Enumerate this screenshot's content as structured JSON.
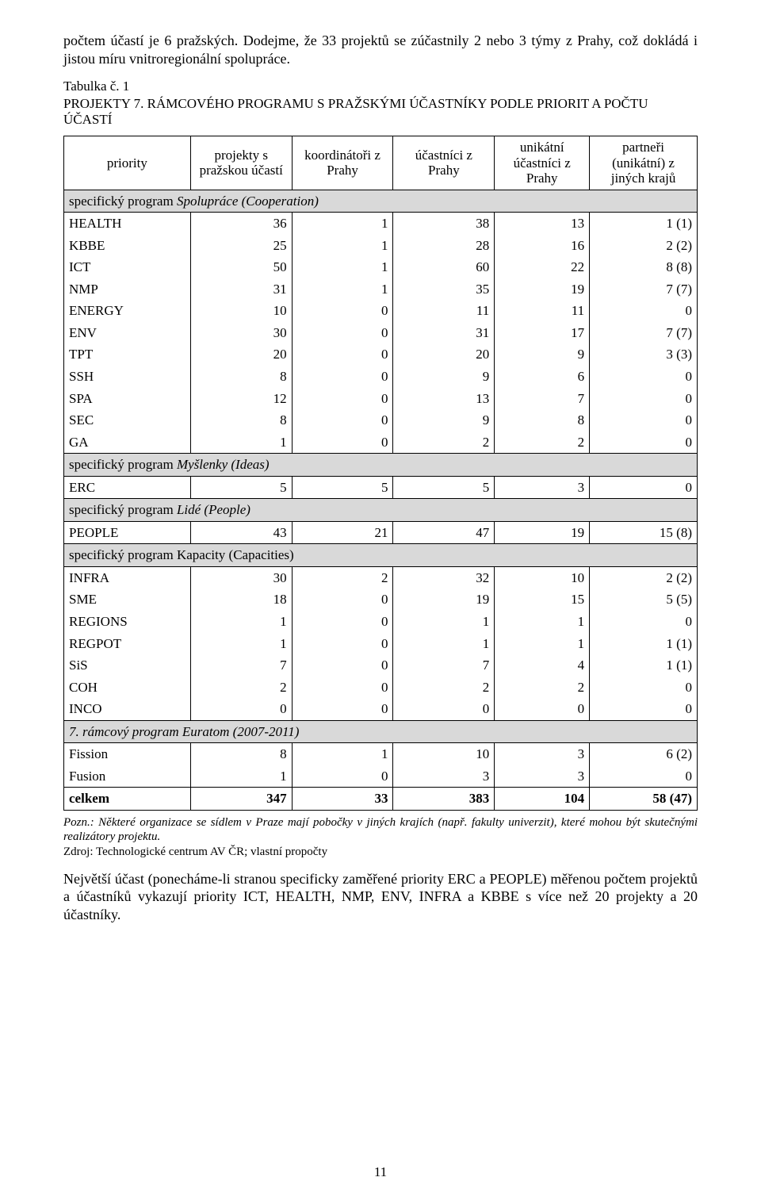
{
  "intro_paragraph": "počtem účastí je 6 pražských. Dodejme, že 33 projektů se zúčastnily 2 nebo 3 týmy z Prahy, což dokládá i jistou míru vnitroregionální spolupráce.",
  "table_caption": "Tabulka č. 1",
  "table_title": "PROJEKTY 7. RÁMCOVÉHO PROGRAMU S PRAŽSKÝMI ÚČASTNÍKY PODLE PRIORIT A POČTU ÚČASTÍ",
  "columns": {
    "priority": "priority",
    "projects": "projekty s pražskou účastí",
    "coordinators": "koordinátoři z Prahy",
    "participants": "účastníci z Prahy",
    "unique": "unikátní účastníci z Prahy",
    "partners": "partneři (unikátní) z jiných krajů"
  },
  "header_style": {
    "font_size": 17,
    "font_weight": "normal",
    "text_align": "center",
    "border": "1px solid #000"
  },
  "section_row_style": {
    "background_color": "#d9d9d9",
    "font_style_inner": "italic"
  },
  "total_row_style": {
    "font_weight": "bold"
  },
  "sections": [
    {
      "label_prefix": "specifický program ",
      "label_italic": "Spolupráce (Cooperation)",
      "rows": [
        {
          "priority": "HEALTH",
          "projects": "36",
          "coordinators": "1",
          "participants": "38",
          "unique": "13",
          "partners": "1 (1)"
        },
        {
          "priority": "KBBE",
          "projects": "25",
          "coordinators": "1",
          "participants": "28",
          "unique": "16",
          "partners": "2 (2)"
        },
        {
          "priority": "ICT",
          "projects": "50",
          "coordinators": "1",
          "participants": "60",
          "unique": "22",
          "partners": "8 (8)"
        },
        {
          "priority": "NMP",
          "projects": "31",
          "coordinators": "1",
          "participants": "35",
          "unique": "19",
          "partners": "7 (7)"
        },
        {
          "priority": "ENERGY",
          "projects": "10",
          "coordinators": "0",
          "participants": "11",
          "unique": "11",
          "partners": "0"
        },
        {
          "priority": "ENV",
          "projects": "30",
          "coordinators": "0",
          "participants": "31",
          "unique": "17",
          "partners": "7 (7)"
        },
        {
          "priority": "TPT",
          "projects": "20",
          "coordinators": "0",
          "participants": "20",
          "unique": "9",
          "partners": "3 (3)"
        },
        {
          "priority": "SSH",
          "projects": "8",
          "coordinators": "0",
          "participants": "9",
          "unique": "6",
          "partners": "0"
        },
        {
          "priority": "SPA",
          "projects": "12",
          "coordinators": "0",
          "participants": "13",
          "unique": "7",
          "partners": "0"
        },
        {
          "priority": "SEC",
          "projects": "8",
          "coordinators": "0",
          "participants": "9",
          "unique": "8",
          "partners": "0"
        },
        {
          "priority": "GA",
          "projects": "1",
          "coordinators": "0",
          "participants": "2",
          "unique": "2",
          "partners": "0"
        }
      ]
    },
    {
      "label_prefix": "specifický program ",
      "label_italic": "Myšlenky (Ideas)",
      "rows": [
        {
          "priority": "ERC",
          "projects": "5",
          "coordinators": "5",
          "participants": "5",
          "unique": "3",
          "partners": "0"
        }
      ]
    },
    {
      "label_prefix": "specifický program ",
      "label_italic": "Lidé (People)",
      "rows": [
        {
          "priority": "PEOPLE",
          "projects": "43",
          "coordinators": "21",
          "participants": "47",
          "unique": "19",
          "partners": "15 (8)"
        }
      ]
    },
    {
      "label_prefix": "specifický program Kapacity (Capacities)",
      "label_italic": "",
      "rows": [
        {
          "priority": "INFRA",
          "projects": "30",
          "coordinators": "2",
          "participants": "32",
          "unique": "10",
          "partners": "2 (2)"
        },
        {
          "priority": "SME",
          "projects": "18",
          "coordinators": "0",
          "participants": "19",
          "unique": "15",
          "partners": "5 (5)"
        },
        {
          "priority": "REGIONS",
          "projects": "1",
          "coordinators": "0",
          "participants": "1",
          "unique": "1",
          "partners": "0"
        },
        {
          "priority": "REGPOT",
          "projects": "1",
          "coordinators": "0",
          "participants": "1",
          "unique": "1",
          "partners": "1 (1)"
        },
        {
          "priority": "SiS",
          "projects": "7",
          "coordinators": "0",
          "participants": "7",
          "unique": "4",
          "partners": "1 (1)"
        },
        {
          "priority": "COH",
          "projects": "2",
          "coordinators": "0",
          "participants": "2",
          "unique": "2",
          "partners": "0"
        },
        {
          "priority": "INCO",
          "projects": "0",
          "coordinators": "0",
          "participants": "0",
          "unique": "0",
          "partners": "0"
        }
      ]
    },
    {
      "label_prefix": "",
      "label_italic": "7. rámcový program Euratom (2007-2011)",
      "rows": [
        {
          "priority": "Fission",
          "projects": "8",
          "coordinators": "1",
          "participants": "10",
          "unique": "3",
          "partners": "6 (2)"
        },
        {
          "priority": "Fusion",
          "projects": "1",
          "coordinators": "0",
          "participants": "3",
          "unique": "3",
          "partners": "0"
        }
      ]
    }
  ],
  "total": {
    "priority": "celkem",
    "projects": "347",
    "coordinators": "33",
    "participants": "383",
    "unique": "104",
    "partners": "58 (47)"
  },
  "note": "Pozn.: Některé organizace se sídlem v Praze mají pobočky v jiných krajích (např. fakulty univerzit), které mohou být skutečnými realizátory projektu.",
  "source": "Zdroj: Technologické centrum AV ČR; vlastní propočty",
  "closing_paragraph": "Největší účast (ponecháme-li stranou specificky zaměřené priority ERC a PEOPLE) měřenou počtem projektů a účastníků vykazují priority ICT, HEALTH, NMP, ENV, INFRA a KBBE s více než 20 projekty a 20 účastníky.",
  "page_number": "11",
  "colors": {
    "text": "#000000",
    "background": "#ffffff",
    "section_bg": "#d9d9d9",
    "border": "#000000"
  },
  "typography": {
    "body_font": "Times New Roman",
    "body_size": 18,
    "table_size": 17,
    "note_size": 15
  },
  "col_widths": [
    "20%",
    "16%",
    "16%",
    "16%",
    "15%",
    "17%"
  ]
}
